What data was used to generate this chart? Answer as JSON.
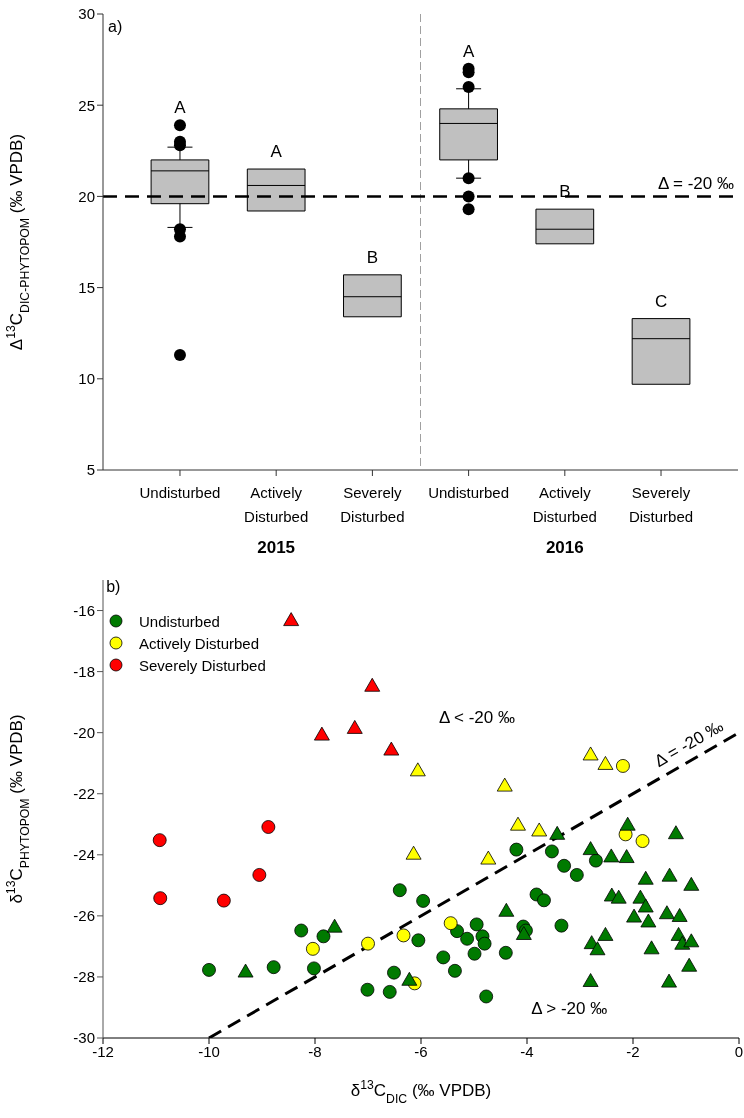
{
  "chart_data": [
    {
      "type": "box",
      "categories": [
        "Undisturbed",
        "Actively Disturbed",
        "Severely Disturbed",
        "Undisturbed",
        "Actively Disturbed",
        "Severely Disturbed"
      ],
      "ylabel": "Δ$^{13}$C$_{DIC-PHYTOPOM}$ (‰ VPDB)",
      "ylim": [
        5,
        30
      ],
      "yticks": [
        5,
        10,
        15,
        20,
        25,
        30
      ],
      "series": [
        {
          "color": "#c0c0c0",
          "boxes": [
            {
              "low": 18.3,
              "q1": 19.6,
              "median": 21.4,
              "q3": 22.0,
              "high": 22.7,
              "outliers": [
                23.9,
                23.0,
                22.8,
                18.2,
                17.8,
                11.3
              ]
            },
            {
              "low": 19.2,
              "q1": 19.2,
              "median": 20.6,
              "q3": 21.5,
              "high": 21.5
            },
            {
              "low": 13.4,
              "q1": 13.4,
              "median": 14.5,
              "q3": 15.7,
              "high": 15.7
            },
            {
              "low": 21.0,
              "q1": 22.0,
              "median": 24.0,
              "q3": 24.8,
              "high": 25.9,
              "outliers": [
                27.0,
                26.8,
                26.0,
                21.0,
                20.0,
                19.3
              ]
            },
            {
              "low": 17.4,
              "q1": 17.4,
              "median": 18.2,
              "q3": 19.3,
              "high": 19.3
            },
            {
              "low": 9.7,
              "q1": 9.7,
              "median": 12.2,
              "q3": 13.3,
              "high": 13.3
            }
          ]
        }
      ],
      "ref_lines": [
        {
          "axis": "y",
          "value": 20,
          "color": "#000000",
          "line_style": "dashed"
        }
      ],
      "annotations": [
        "a)",
        "A",
        "A",
        "B",
        "A",
        "B",
        "C",
        "Δ = -20 ‰",
        "2015",
        "2016"
      ]
    },
    {
      "type": "scatter",
      "xlabel": "δ$^{13}$C$_{DIC}$ (‰ VPDB)",
      "ylabel": "δ$^{13}$C$_{PHYTOPOM}$ (‰ VPDB)",
      "xlim": [
        -12,
        0
      ],
      "xticks": [
        -12,
        -10,
        -8,
        -6,
        -4,
        -2,
        0
      ],
      "ylim": [
        -30,
        -15
      ],
      "yticks": [
        -30,
        -28,
        -26,
        -24,
        -22,
        -20,
        -18,
        -16
      ],
      "legend": "top left",
      "series": [
        {
          "name": "Undisturbed",
          "color": "#007a00",
          "marker": "circle",
          "x": [
            -6.4,
            -8.26,
            -7.84,
            -10.0,
            -8.78,
            -8.02,
            -7.01,
            -6.59,
            -6.51,
            -6.05,
            -5.96,
            -4.2,
            -3.53,
            -3.3,
            -3.06,
            -2.7,
            -3.82,
            -3.68,
            -3.35,
            -5.32,
            -5.13,
            -4.95,
            -4.84,
            -4.8,
            -4.99,
            -5.58,
            -4.4,
            -4.07,
            -4.02,
            -5.36,
            -4.77
          ],
          "values": [
            -25.16,
            -26.48,
            -26.67,
            -27.77,
            -27.68,
            -27.72,
            -28.42,
            -28.49,
            -27.86,
            -26.8,
            -25.51,
            -23.83,
            -23.89,
            -24.36,
            -24.66,
            -24.19,
            -25.3,
            -25.49,
            -26.32,
            -26.5,
            -26.75,
            -26.28,
            -26.67,
            -26.91,
            -27.24,
            -27.36,
            -27.21,
            -26.35,
            -26.48,
            -27.8,
            -28.64
          ]
        },
        {
          "name": "Actively Disturbed",
          "color": "#ffff00",
          "marker": "circle",
          "x": [
            -2.19,
            -2.14,
            -1.82,
            -5.44,
            -6.33,
            -6.12,
            -8.04,
            -7.0
          ],
          "values": [
            -21.09,
            -23.33,
            -23.55,
            -26.24,
            -26.64,
            -28.21,
            -27.08,
            -26.91
          ]
        },
        {
          "name": "Severely Disturbed",
          "color": "#ff0000",
          "marker": "circle",
          "x": [
            -10.93,
            -8.88,
            -9.05,
            -10.92,
            -9.72
          ],
          "values": [
            -23.52,
            -23.09,
            -24.66,
            -25.42,
            -25.5
          ]
        },
        {
          "color": "#007a00",
          "marker": "triangle",
          "x": [
            -9.31,
            -7.63,
            -6.22,
            -3.43,
            -2.1,
            -1.19,
            -2.8,
            -2.41,
            -2.12,
            -1.76,
            -1.31,
            -0.9,
            -2.4,
            -2.27,
            -1.86,
            -1.76,
            -1.98,
            -1.71,
            -1.36,
            -1.12,
            -4.39,
            -4.06,
            -2.52,
            -2.78,
            -2.67,
            -1.65,
            -1.14,
            -1.07,
            -0.9,
            -0.94,
            -2.8,
            -1.32
          ],
          "values": [
            -27.84,
            -26.37,
            -28.11,
            -23.33,
            -23.03,
            -23.31,
            -23.83,
            -24.07,
            -24.09,
            -24.8,
            -24.7,
            -25.0,
            -25.35,
            -25.42,
            -25.42,
            -25.71,
            -26.04,
            -26.2,
            -25.93,
            -26.02,
            -25.85,
            -26.61,
            -26.64,
            -26.91,
            -27.11,
            -27.08,
            -26.64,
            -26.93,
            -26.85,
            -27.65,
            -28.15,
            -28.17
          ]
        },
        {
          "color": "#ffff00",
          "marker": "triangle",
          "x": [
            -6.06,
            -2.8,
            -2.52,
            -4.42,
            -4.17,
            -3.77,
            -6.14,
            -4.73
          ],
          "values": [
            -21.25,
            -20.73,
            -21.04,
            -21.75,
            -23.03,
            -23.22,
            -23.98,
            -24.14
          ]
        },
        {
          "color": "#ff0000",
          "marker": "triangle",
          "x": [
            -8.45,
            -6.92,
            -7.87,
            -7.25,
            -6.56
          ],
          "values": [
            -16.33,
            -18.48,
            -20.08,
            -19.86,
            -20.57
          ]
        },
        {
          "type": "line",
          "name": "Δ = -20 ‰",
          "color": "#000000",
          "line_style": "dashed",
          "marker": "none",
          "x": [
            -10,
            0
          ],
          "values": [
            -30,
            -20
          ]
        }
      ],
      "annotations": [
        "b)",
        "Δ < -20 ‰",
        "Δ > -20 ‰"
      ]
    }
  ]
}
